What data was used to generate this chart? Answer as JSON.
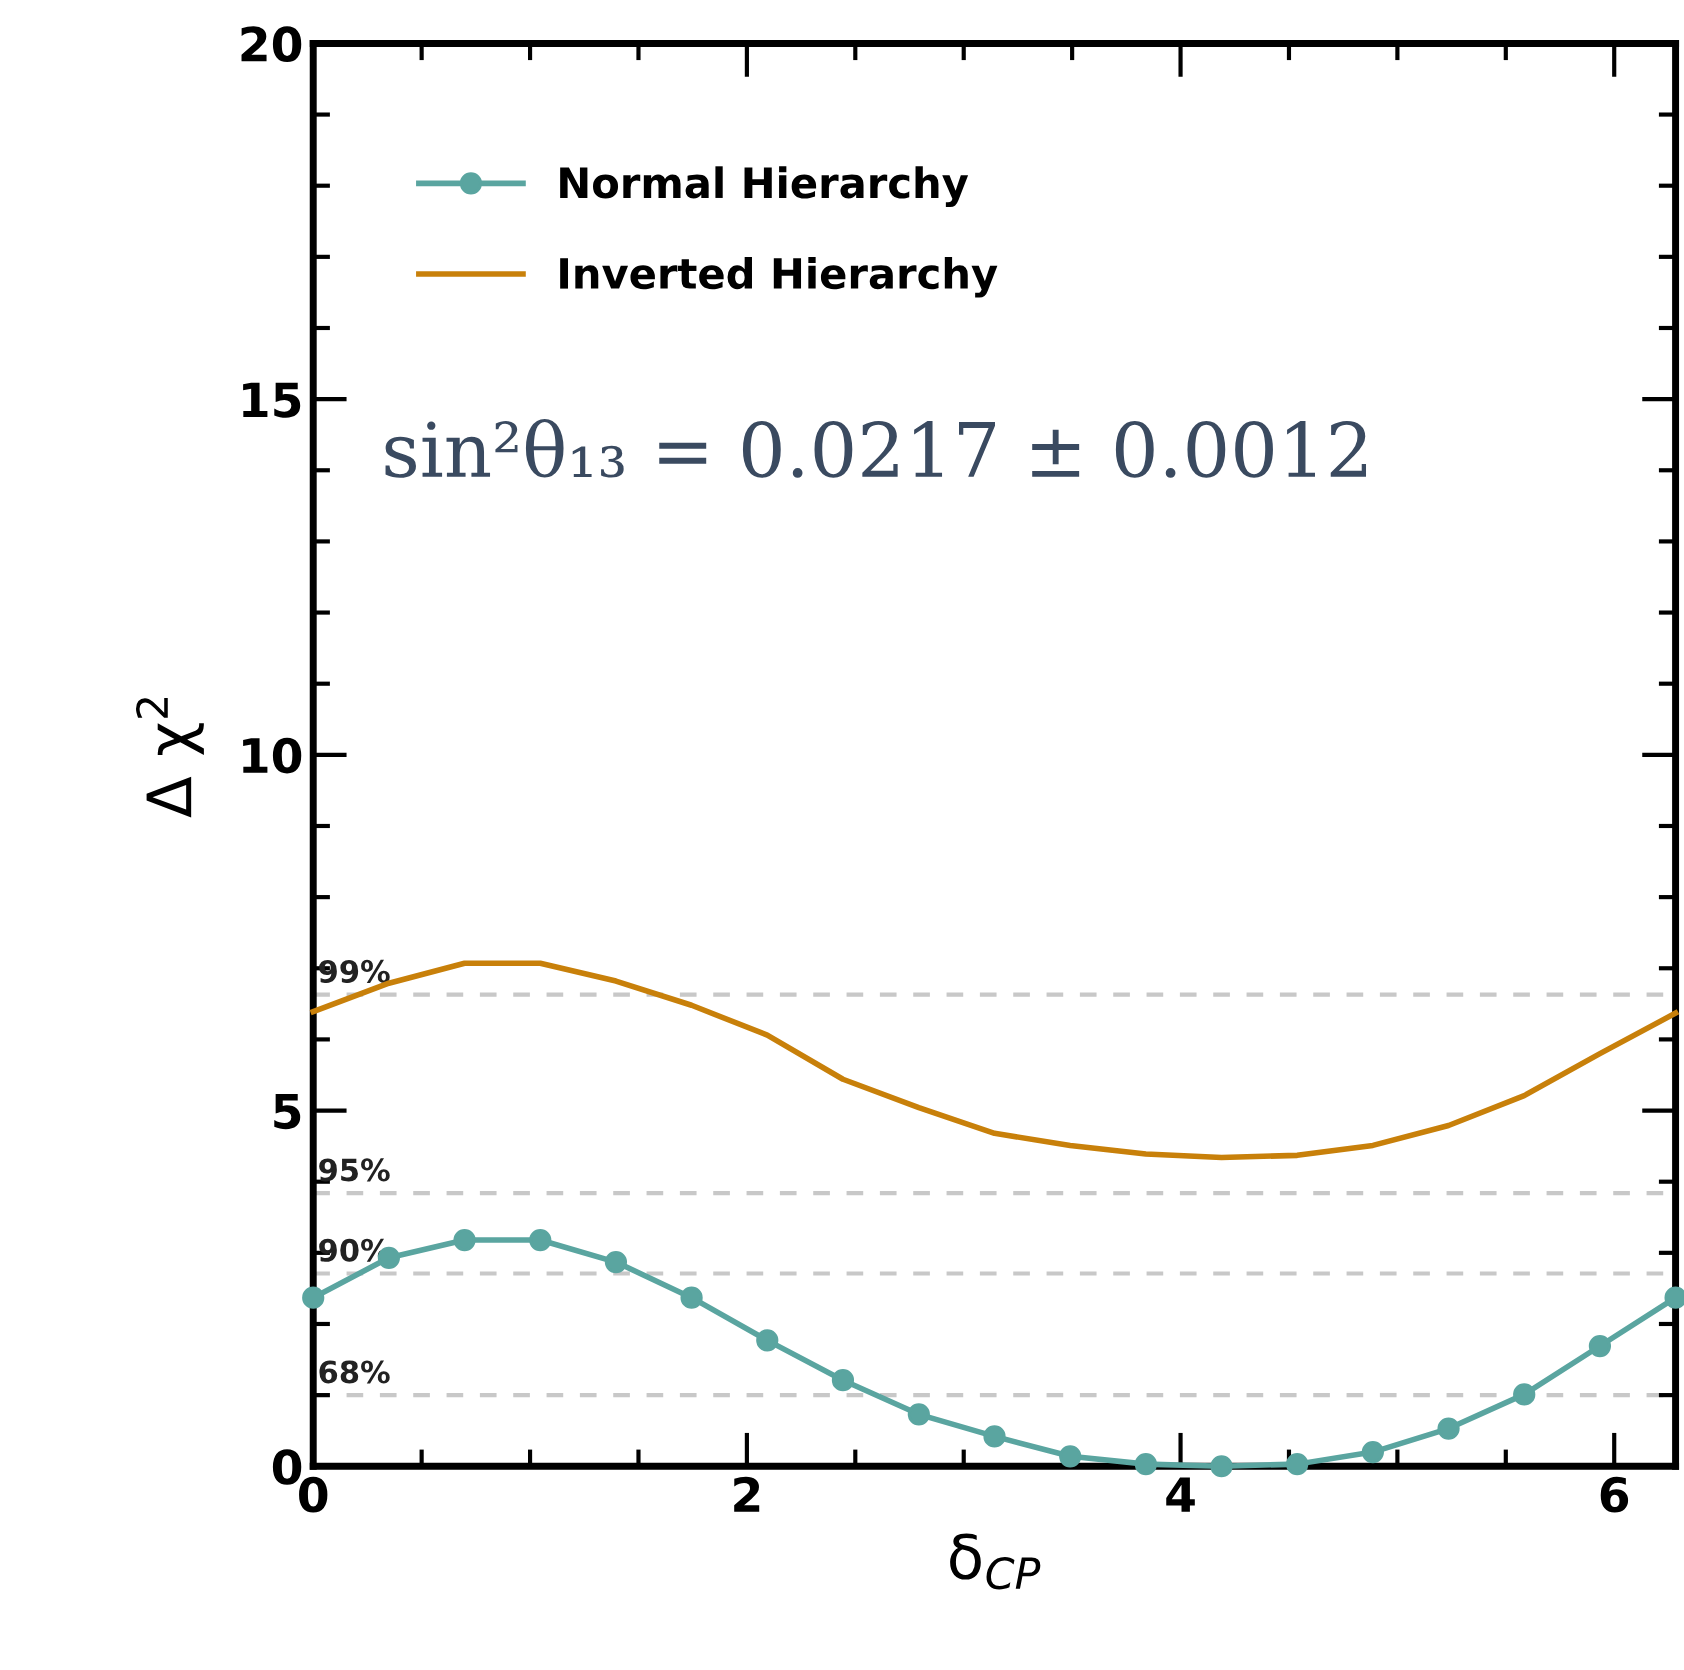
{
  "chart_data": {
    "type": "line",
    "xlabel": "δ$_{CP}$",
    "ylabel": "Δ χ$^{2}$",
    "x": [
      0,
      0.349,
      0.698,
      1.047,
      1.396,
      1.745,
      2.094,
      2.443,
      2.793,
      3.142,
      3.491,
      3.84,
      4.189,
      4.538,
      4.887,
      5.236,
      5.585,
      5.934,
      6.283
    ],
    "series": [
      {
        "name": "Normal Hierarchy",
        "color": "#5aa5a0",
        "marker": "circle",
        "values": [
          2.37,
          2.93,
          3.18,
          3.18,
          2.87,
          2.37,
          1.77,
          1.21,
          0.73,
          0.42,
          0.14,
          0.03,
          0.0,
          0.03,
          0.2,
          0.53,
          1.01,
          1.69,
          2.37
        ]
      },
      {
        "name": "Inverted Hierarchy",
        "color": "#c8800a",
        "marker": "none",
        "values": [
          6.39,
          6.79,
          7.07,
          7.07,
          6.82,
          6.48,
          6.06,
          5.44,
          5.04,
          4.68,
          4.51,
          4.39,
          4.34,
          4.37,
          4.51,
          4.79,
          5.21,
          5.8,
          6.37
        ]
      }
    ],
    "xlim": [
      0,
      6.283
    ],
    "xticks": [
      0,
      2,
      4,
      6
    ],
    "ylim": [
      0,
      20
    ],
    "yticks": [
      0,
      5,
      10,
      15,
      20
    ],
    "ref_lines": [
      {
        "axis": "y",
        "value": 1.0,
        "color": "#c8c8c8",
        "line_style": "dashed"
      },
      {
        "axis": "y",
        "value": 2.71,
        "color": "#c8c8c8",
        "line_style": "dashed"
      },
      {
        "axis": "y",
        "value": 3.84,
        "color": "#c8c8c8",
        "line_style": "dashed"
      },
      {
        "axis": "y",
        "value": 6.63,
        "color": "#c8c8c8",
        "line_style": "dashed"
      }
    ],
    "annotations": [
      "sin²θ₁₃ = 0.0217 ± 0.0012",
      {
        "text": "68%",
        "y": 1.0
      },
      {
        "text": "90%",
        "y": 2.71
      },
      {
        "text": "95%",
        "y": 3.84
      },
      {
        "text": "99%",
        "y": 6.63
      }
    ],
    "legend": "top left",
    "grid": false
  }
}
